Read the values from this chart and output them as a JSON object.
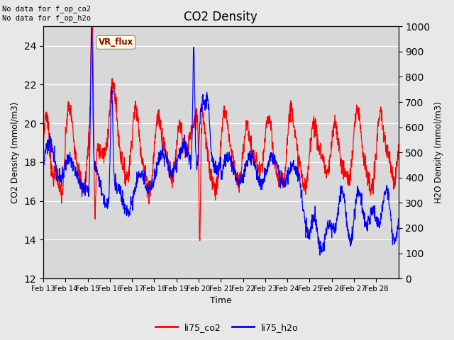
{
  "title": "CO2 Density",
  "xlabel": "Time",
  "ylabel_left": "CO2 Density (mmol/m3)",
  "ylabel_right": "H2O Density (mmol/m3)",
  "annotation_text": "No data for f_op_co2\nNo data for f_op_h2o",
  "legend_box_label": "VR_flux",
  "legend_entries": [
    "li75_co2",
    "li75_h2o"
  ],
  "ylim_left": [
    12,
    25
  ],
  "ylim_right": [
    0,
    1000
  ],
  "yticks_left": [
    12,
    14,
    16,
    18,
    20,
    22,
    24
  ],
  "yticks_right": [
    0,
    100,
    200,
    300,
    400,
    500,
    600,
    700,
    800,
    900,
    1000
  ],
  "xtick_labels": [
    "Feb 13",
    "Feb 14",
    "Feb 15",
    "Feb 16",
    "Feb 17",
    "Feb 18",
    "Feb 19",
    "Feb 20",
    "Feb 21",
    "Feb 22",
    "Feb 23",
    "Feb 24",
    "Feb 25",
    "Feb 26",
    "Feb 27",
    "Feb 28"
  ],
  "figsize": [
    6.4,
    4.8
  ],
  "dpi": 100,
  "bg_color": "#e8e8e8",
  "plot_bg_inner": "#d8d8d8",
  "grid_color": "white"
}
